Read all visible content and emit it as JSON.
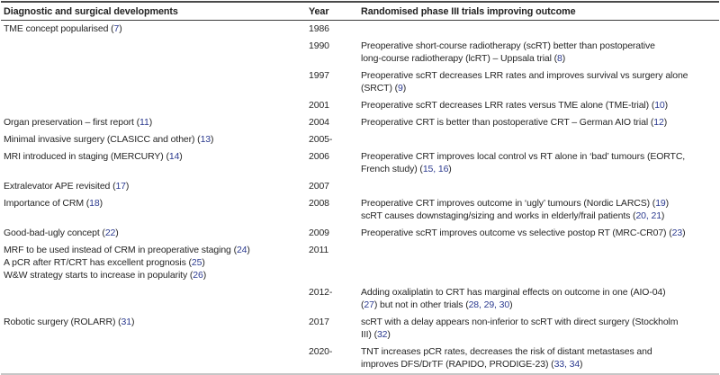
{
  "colors": {
    "citation_link": "#2b3a8f",
    "body_text": "#262626",
    "top_rule": "#4a4a4a",
    "bottom_rule": "#c6c6c6"
  },
  "table": {
    "columns": [
      {
        "label": "Diagnostic and surgical developments"
      },
      {
        "label": "Year"
      },
      {
        "label": "Randomised phase III trials improving outcome"
      }
    ],
    "rows": [
      {
        "development": "TME concept popularised (7)",
        "year": "1986",
        "trial": ""
      },
      {
        "development": "",
        "year": "1990",
        "trial": "Preoperative short-course radiotherapy (scRT) better than postoperative\nlong-course radiotherapy (lcRT) – Uppsala trial (8)"
      },
      {
        "development": "",
        "year": "1997",
        "trial": "Preoperative scRT decreases LRR rates and improves survival vs surgery alone\n(SRCT) (9)"
      },
      {
        "development": "",
        "year": "2001",
        "trial": "Preoperative scRT decreases LRR rates versus TME alone (TME-trial) (10)"
      },
      {
        "development": "Organ preservation – first report (11)",
        "year": "2004",
        "trial": "Preoperative CRT is better than postoperative CRT – German AIO trial (12)"
      },
      {
        "development": "Minimal invasive surgery (CLASICC and other) (13)",
        "year": "2005-",
        "trial": ""
      },
      {
        "development": "MRI introduced in staging (MERCURY) (14)",
        "year": "2006",
        "trial": "Preoperative CRT improves local control vs RT alone in ‘bad’ tumours (EORTC,\nFrench study) (15, 16)"
      },
      {
        "development": "Extralevator APE revisited (17)",
        "year": "2007",
        "trial": ""
      },
      {
        "development": "Importance of CRM (18)",
        "year": "2008",
        "trial": "Preoperative CRT improves outcome in ‘ugly’ tumours (Nordic LARCS) (19)\nscRT causes downstaging/sizing and works in elderly/frail patients (20, 21)"
      },
      {
        "development": "Good-bad-ugly concept (22)",
        "year": "2009",
        "trial": "Preoperative scRT improves outcome vs selective postop RT (MRC-CR07) (23)"
      },
      {
        "development": "MRF to be used instead of CRM in preoperative staging (24)\nA pCR after RT/CRT has excellent prognosis (25)\nW&W strategy starts to increase in popularity (26)",
        "year": "2011",
        "trial": ""
      },
      {
        "development": "",
        "year": "2012-",
        "trial": "Adding oxaliplatin to CRT has marginal effects on outcome in one (AIO-04)\n(27) but not in other trials (28, 29, 30)"
      },
      {
        "development": "Robotic surgery (ROLARR) (31)",
        "year": "2017",
        "trial": "scRT with a delay appears non-inferior to scRT with direct surgery (Stockholm\nIII) (32)"
      },
      {
        "development": "",
        "year": "2020-",
        "trial": "TNT increases pCR rates, decreases the risk of distant metastases and\nimproves DFS/DrTF (RAPIDO, PRODIGE-23) (33, 34)"
      }
    ]
  }
}
